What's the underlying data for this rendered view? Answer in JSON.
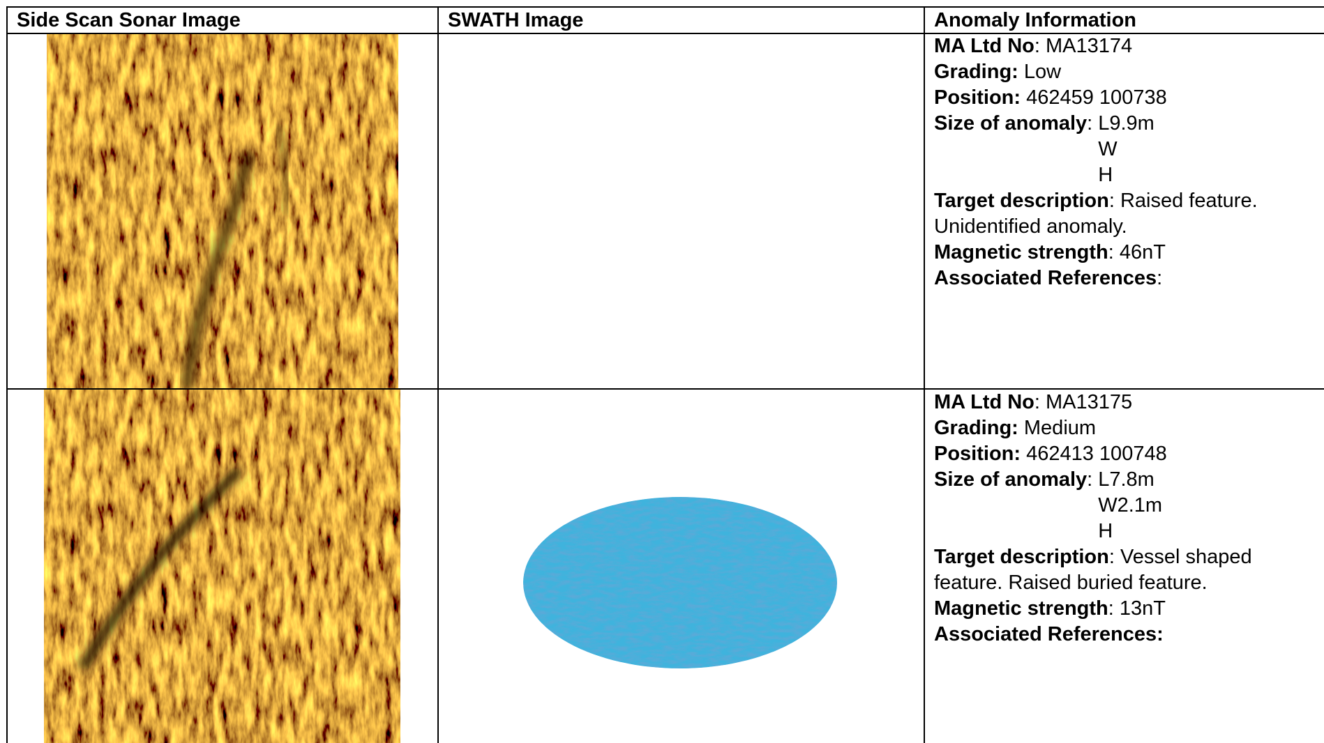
{
  "header": {
    "columns": [
      "Side Scan Sonar Image",
      "SWATH Image",
      "Anomaly Information"
    ]
  },
  "rows": [
    {
      "fields": [
        {
          "label": "MA Ltd No",
          "text": ": MA13174"
        },
        {
          "label": "Grading:",
          "text": " Low"
        },
        {
          "label": "Position:",
          "text": " 462459 100738"
        },
        {
          "label": "Size of anomaly",
          "text": ":",
          "lines": [
            "L9.9m",
            "W",
            "H"
          ]
        },
        {
          "label": "Target description",
          "text": ": Raised feature. Unidentified anomaly."
        },
        {
          "label": "Magnetic strength",
          "text": ": 46nT"
        },
        {
          "label": "Associated References",
          "text": ":"
        }
      ]
    },
    {
      "fields": [
        {
          "label": "MA Ltd No",
          "text": ": MA13175"
        },
        {
          "label": "Grading:",
          "text": " Medium"
        },
        {
          "label": "Position:",
          "text": " 462413 100748"
        },
        {
          "label": "Size of anomaly",
          "text": ":",
          "lines": [
            "L7.8m",
            "W2.1m",
            "H"
          ]
        },
        {
          "label": "Target description",
          "text": ": Vessel shaped feature. Raised buried feature."
        },
        {
          "label": "Magnetic strength",
          "text": ": 13nT"
        },
        {
          "label": "Associated References:"
        }
      ]
    }
  ]
}
